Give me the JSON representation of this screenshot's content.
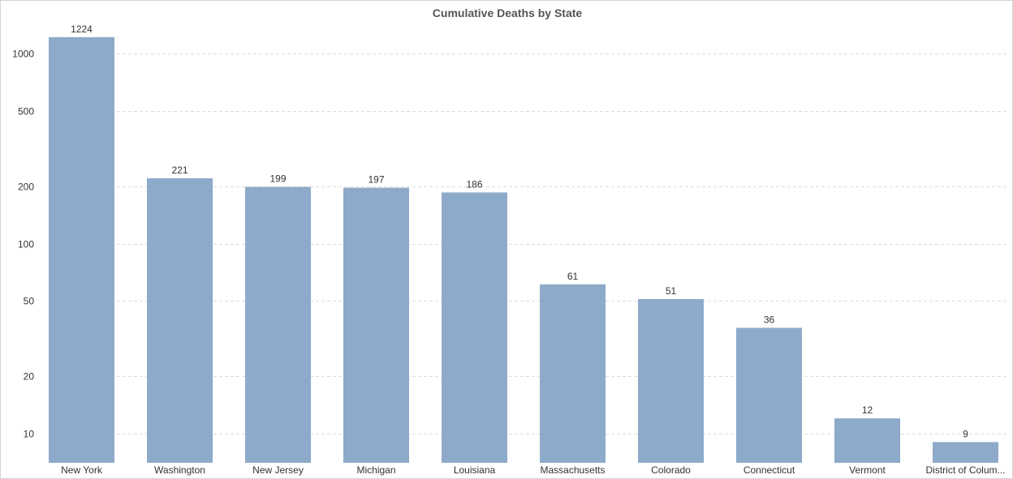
{
  "chart_data": {
    "type": "bar",
    "title": "Cumulative Deaths by State",
    "xlabel": "",
    "ylabel": "",
    "y_scale": "log",
    "ylim": [
      7,
      1430
    ],
    "y_ticks": [
      10,
      20,
      50,
      100,
      200,
      500,
      1000
    ],
    "grid": true,
    "categories": [
      "New York",
      "Washington",
      "New Jersey",
      "Michigan",
      "Louisiana",
      "Massachusetts",
      "Colorado",
      "Connecticut",
      "Vermont",
      "District of Colum..."
    ],
    "values": [
      1224,
      221,
      199,
      197,
      186,
      61,
      51,
      36,
      12,
      9
    ],
    "bar_color": "#8eaaca",
    "grid_color": "#dddddd",
    "text_color": "#333333"
  }
}
